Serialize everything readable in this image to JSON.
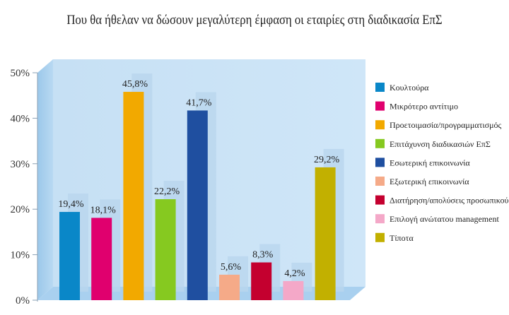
{
  "chart_data": {
    "type": "bar",
    "title": "Που θα ήθελαν να δώσουν μεγαλύτερη έμφαση οι εταιρίες στη διαδικασία ΕπΣ",
    "categories": [
      "Κουλτούρα",
      "Μικρότερο αντίτιμο",
      "Προετοιμασία/προγραμματισμός",
      "Επιτάχυνση διαδικασιών ΕπΣ",
      "Εσωτερική επικοινωνία",
      "Εξωτερική επικοινωνία",
      "Διατήρηση/απολύσεις προσωπικού",
      "Επιλογή ανώτατου management",
      "Τίποτα"
    ],
    "values": [
      19.4,
      18.1,
      45.8,
      22.2,
      41.7,
      5.6,
      8.3,
      4.2,
      29.2
    ],
    "value_labels": [
      "19,4%",
      "18,1%",
      "45,8%",
      "22,2%",
      "41,7%",
      "5,6%",
      "8,3%",
      "4,2%",
      "29,2%"
    ],
    "colors": [
      "#0a87c8",
      "#e0006e",
      "#f2a900",
      "#86c920",
      "#1f4fa0",
      "#f5aa88",
      "#c4002f",
      "#f4a8c8",
      "#c2b000"
    ],
    "ylim": [
      0,
      50
    ],
    "yticks": [
      "0%",
      "10%",
      "20%",
      "30%",
      "40%",
      "50%"
    ],
    "legend_position": "right",
    "grid": false,
    "xlabel": "",
    "ylabel": ""
  }
}
